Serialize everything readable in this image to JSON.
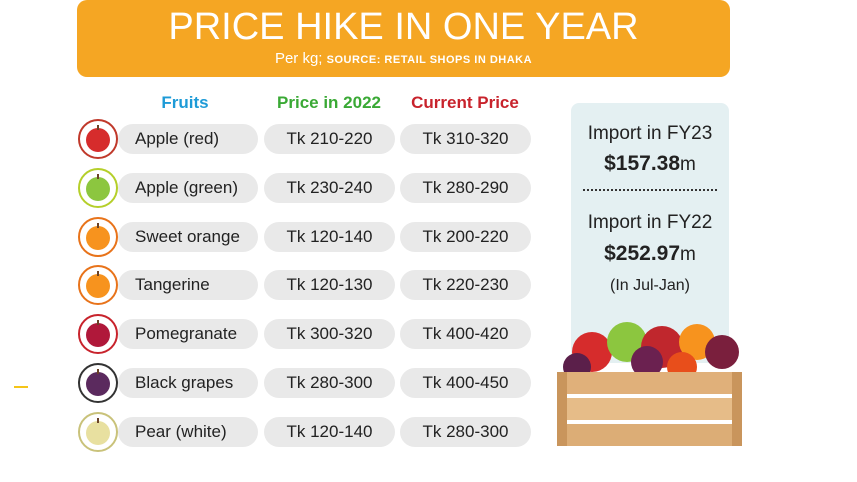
{
  "header": {
    "title": "PRICE HIKE IN ONE YEAR",
    "subtitle": "Per kg;",
    "source": "SOURCE: RETAIL SHOPS IN DHAKA"
  },
  "table": {
    "columns": [
      "Fruits",
      "Price in 2022",
      "Current Price"
    ],
    "rows": [
      [
        "Apple (red)",
        "Tk 210-220",
        "Tk 310-320"
      ],
      [
        "Apple (green)",
        "Tk 230-240",
        "Tk 280-290"
      ],
      [
        "Sweet orange",
        "Tk 120-140",
        "Tk 200-220"
      ],
      [
        "Tangerine",
        "Tk 120-130",
        "Tk 220-230"
      ],
      [
        "Pomegranate",
        "Tk 300-320",
        "Tk 400-420"
      ],
      [
        "Black grapes",
        "Tk 280-300",
        "Tk 400-450"
      ],
      [
        "Pear (white)",
        "Tk 120-140",
        "Tk 280-300"
      ]
    ]
  },
  "imports": [
    {
      "label": "Import in FY23",
      "amount": "$157.38",
      "unit": "m"
    },
    {
      "label": "Import in FY22",
      "amount": "$252.97",
      "unit": "m",
      "note": "(In Jul-Jan)"
    }
  ]
}
